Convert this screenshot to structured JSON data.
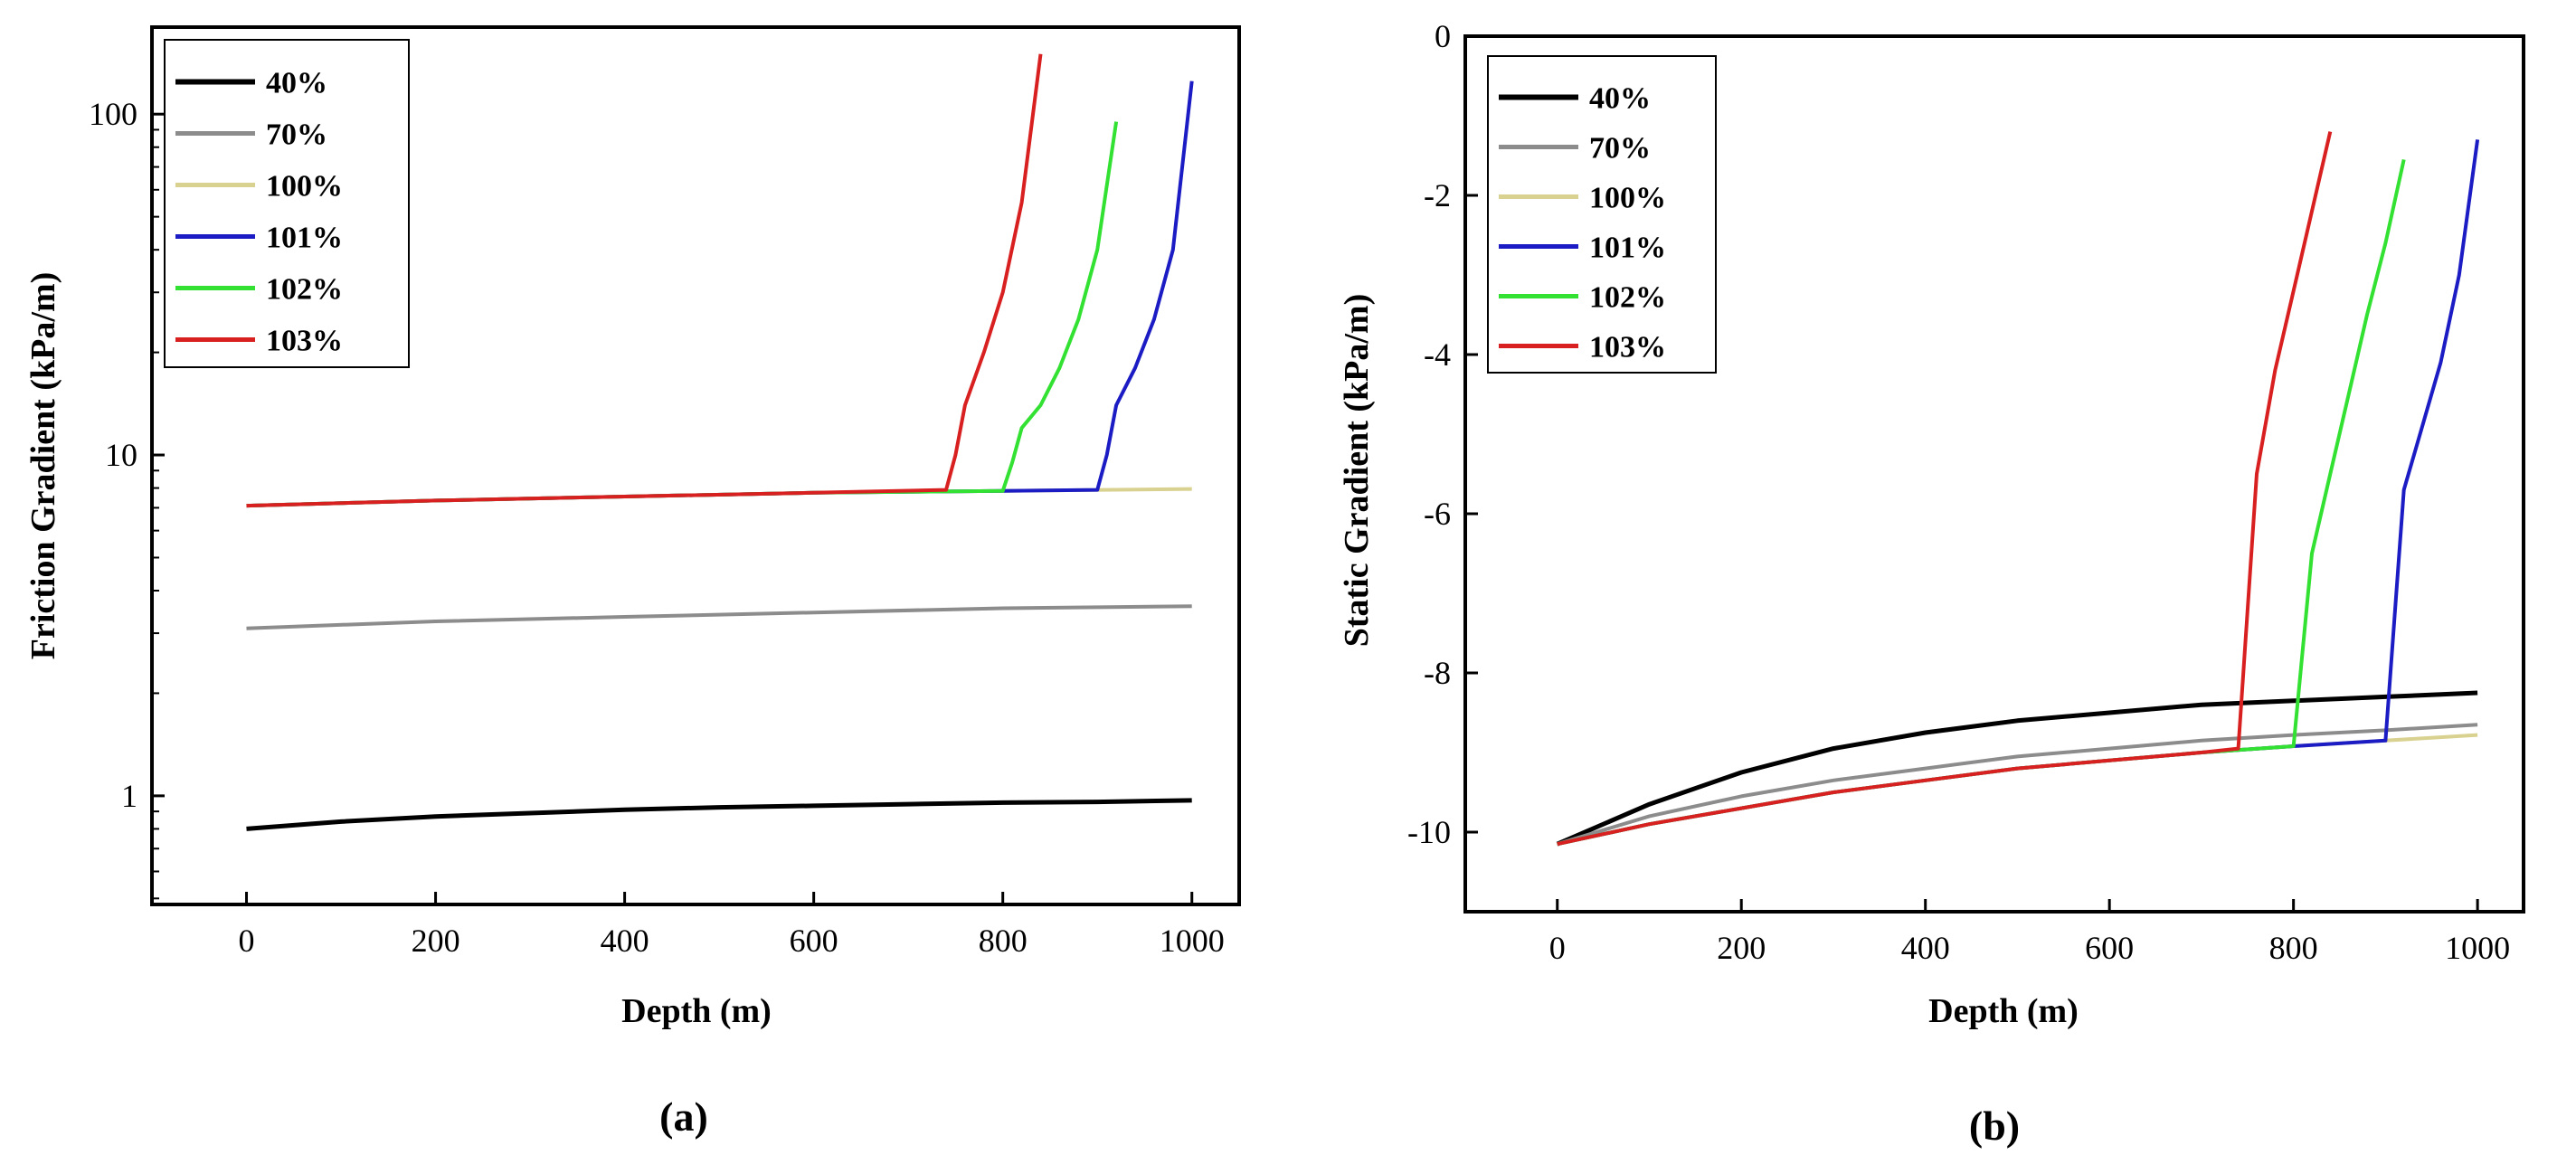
{
  "chart_data": [
    {
      "type": "line",
      "panel_label": "(a)",
      "title": "",
      "xlabel": "Depth (m)",
      "ylabel": "Friction Gradient (kPa/m)",
      "yscale": "log",
      "xlim": [
        -100,
        1050
      ],
      "ylim": [
        0.48,
        180
      ],
      "xticks": [
        0,
        200,
        400,
        600,
        800,
        1000
      ],
      "yticks": [
        1,
        10,
        100
      ],
      "legend_position": "top-left",
      "series": [
        {
          "name": "40%",
          "color": "#000000",
          "x": [
            0,
            100,
            200,
            300,
            400,
            500,
            600,
            700,
            800,
            900,
            1000
          ],
          "y": [
            0.8,
            0.84,
            0.87,
            0.89,
            0.91,
            0.925,
            0.935,
            0.945,
            0.955,
            0.96,
            0.97
          ]
        },
        {
          "name": "70%",
          "color": "#8c8c8c",
          "x": [
            0,
            200,
            400,
            600,
            800,
            1000
          ],
          "y": [
            3.1,
            3.25,
            3.35,
            3.45,
            3.55,
            3.6
          ]
        },
        {
          "name": "100%",
          "color": "#d9d18f",
          "x": [
            0,
            200,
            400,
            600,
            800,
            1000
          ],
          "y": [
            7.1,
            7.35,
            7.55,
            7.75,
            7.85,
            7.95
          ]
        },
        {
          "name": "101%",
          "color": "#1c1cc4",
          "x": [
            0,
            200,
            400,
            600,
            800,
            900,
            910,
            920,
            940,
            960,
            980,
            1000
          ],
          "y": [
            7.1,
            7.35,
            7.55,
            7.75,
            7.85,
            7.9,
            10,
            14,
            18,
            25,
            40,
            125
          ]
        },
        {
          "name": "102%",
          "color": "#33e133",
          "x": [
            0,
            200,
            400,
            600,
            800,
            810,
            820,
            840,
            860,
            880,
            900,
            920
          ],
          "y": [
            7.1,
            7.35,
            7.55,
            7.75,
            7.85,
            9.5,
            12,
            14,
            18,
            25,
            40,
            95
          ]
        },
        {
          "name": "103%",
          "color": "#d92020",
          "x": [
            0,
            200,
            400,
            600,
            740,
            750,
            760,
            780,
            800,
            820,
            840
          ],
          "y": [
            7.1,
            7.35,
            7.55,
            7.75,
            7.9,
            10,
            14,
            20,
            30,
            55,
            150
          ]
        }
      ]
    },
    {
      "type": "line",
      "panel_label": "(b)",
      "title": "",
      "xlabel": "Depth (m)",
      "ylabel": "Static Gradient (kPa/m)",
      "yscale": "linear",
      "xlim": [
        -100,
        1050
      ],
      "ylim": [
        -11,
        0
      ],
      "xticks": [
        0,
        200,
        400,
        600,
        800,
        1000
      ],
      "yticks": [
        0,
        -2,
        -4,
        -6,
        -8,
        -10
      ],
      "legend_position": "top-left",
      "series": [
        {
          "name": "40%",
          "color": "#000000",
          "x": [
            0,
            100,
            200,
            300,
            400,
            500,
            600,
            700,
            800,
            900,
            1000
          ],
          "y": [
            -10.15,
            -9.65,
            -9.25,
            -8.95,
            -8.75,
            -8.6,
            -8.5,
            -8.4,
            -8.35,
            -8.3,
            -8.25
          ]
        },
        {
          "name": "70%",
          "color": "#8c8c8c",
          "x": [
            0,
            100,
            200,
            300,
            400,
            500,
            600,
            700,
            800,
            900,
            1000
          ],
          "y": [
            -10.15,
            -9.8,
            -9.55,
            -9.35,
            -9.2,
            -9.05,
            -8.95,
            -8.85,
            -8.78,
            -8.72,
            -8.65
          ]
        },
        {
          "name": "100%",
          "color": "#d9d18f",
          "x": [
            0,
            100,
            200,
            300,
            400,
            500,
            600,
            700,
            800,
            900,
            1000
          ],
          "y": [
            -10.15,
            -9.9,
            -9.7,
            -9.5,
            -9.35,
            -9.2,
            -9.1,
            -9.0,
            -8.92,
            -8.85,
            -8.78
          ]
        },
        {
          "name": "101%",
          "color": "#1c1cc4",
          "x": [
            0,
            100,
            200,
            300,
            400,
            500,
            600,
            700,
            800,
            900,
            920,
            940,
            960,
            980,
            1000
          ],
          "y": [
            -10.15,
            -9.9,
            -9.7,
            -9.5,
            -9.35,
            -9.2,
            -9.1,
            -9.0,
            -8.92,
            -8.85,
            -5.7,
            -4.9,
            -4.1,
            -3.0,
            -1.3
          ]
        },
        {
          "name": "102%",
          "color": "#33e133",
          "x": [
            0,
            100,
            200,
            300,
            400,
            500,
            600,
            700,
            800,
            820,
            840,
            860,
            880,
            900,
            920
          ],
          "y": [
            -10.15,
            -9.9,
            -9.7,
            -9.5,
            -9.35,
            -9.2,
            -9.1,
            -9.0,
            -8.92,
            -6.5,
            -5.5,
            -4.5,
            -3.5,
            -2.6,
            -1.55
          ]
        },
        {
          "name": "103%",
          "color": "#d92020",
          "x": [
            0,
            100,
            200,
            300,
            400,
            500,
            600,
            700,
            740,
            760,
            780,
            800,
            820,
            840
          ],
          "y": [
            -10.15,
            -9.9,
            -9.7,
            -9.5,
            -9.35,
            -9.2,
            -9.1,
            -9.0,
            -8.95,
            -5.5,
            -4.2,
            -3.2,
            -2.2,
            -1.2
          ]
        }
      ]
    }
  ]
}
